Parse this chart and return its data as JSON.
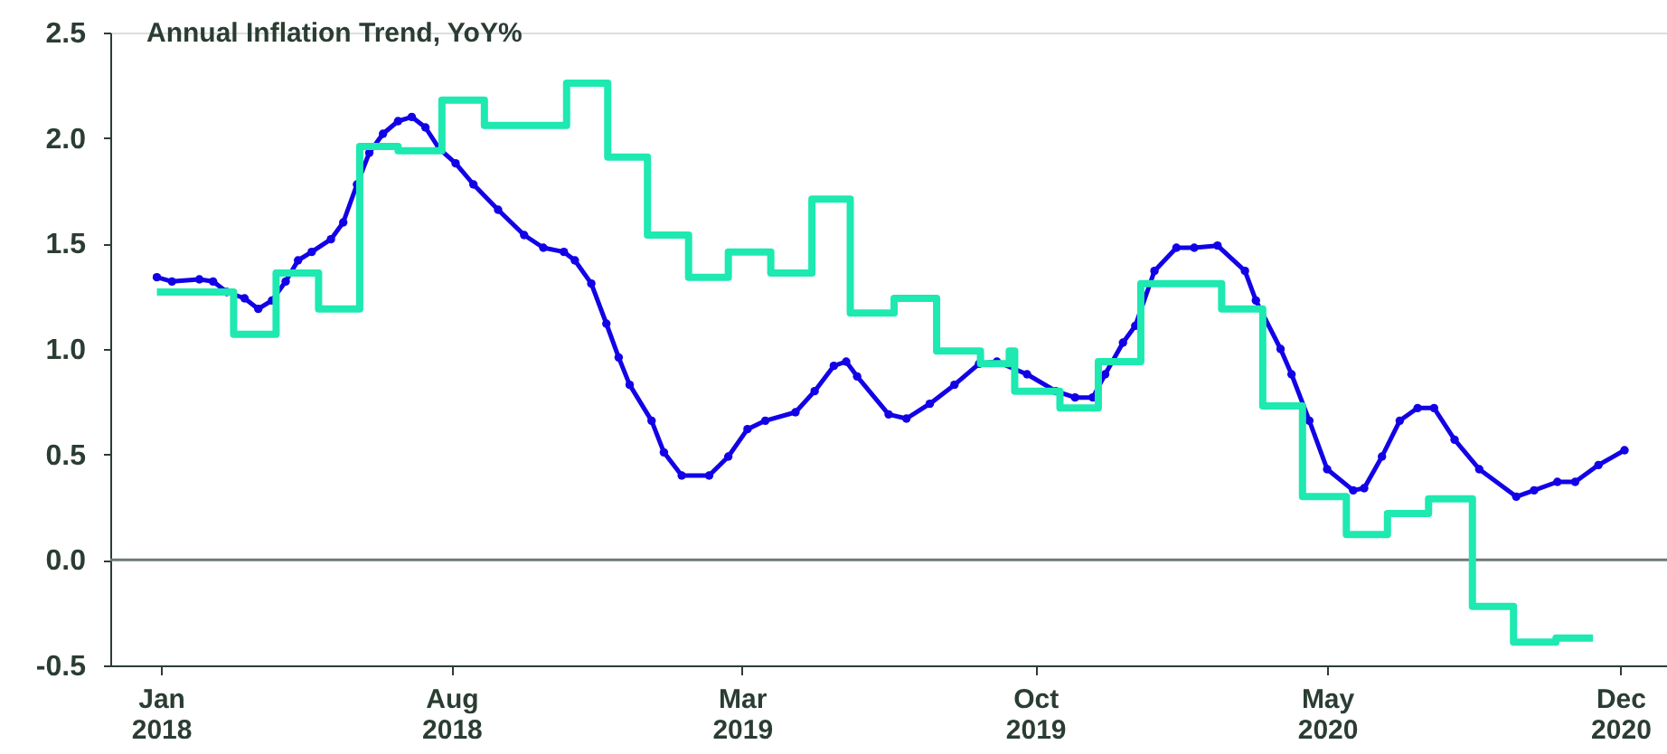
{
  "chart_data": {
    "type": "line",
    "title": "Annual Inflation Trend, YoY%",
    "xlim": [
      "2017-11-25",
      "2021-01-04"
    ],
    "xticks": [
      {
        "value": "2018-01-01",
        "label": "Jan 2018"
      },
      {
        "value": "2018-08-01",
        "label": "Aug 2018"
      },
      {
        "value": "2019-03-01",
        "label": "Mar 2019"
      },
      {
        "value": "2019-10-01",
        "label": "Oct 2019"
      },
      {
        "value": "2020-05-01",
        "label": "May 2020"
      },
      {
        "value": "2020-12-01",
        "label": "Dec 2020"
      }
    ],
    "ylim": [
      -0.5,
      2.5
    ],
    "yticks": [
      -0.5,
      {
        "value": 0,
        "label": "0.0"
      },
      0.5,
      {
        "value": 1,
        "label": "1.0"
      },
      1.5,
      {
        "value": 2,
        "label": "2.0"
      },
      2.5
    ],
    "grid": false,
    "ref_lines": [
      {
        "axis": "y",
        "value": 0,
        "color": "#6b7b72"
      }
    ],
    "series": [
      {
        "color": "#1200e6",
        "marker": "circle",
        "x": [
          "2017-12-29",
          "2018-01-09",
          "2018-01-29",
          "2018-02-08",
          "2018-02-18",
          "2018-03-03",
          "2018-03-13",
          "2018-03-23",
          "2018-04-02",
          "2018-04-11",
          "2018-04-21",
          "2018-05-05",
          "2018-05-14",
          "2018-05-24",
          "2018-06-02",
          "2018-06-12",
          "2018-06-23",
          "2018-07-03",
          "2018-07-13",
          "2018-07-23",
          "2018-08-04",
          "2018-08-17",
          "2018-09-04",
          "2018-09-23",
          "2018-10-07",
          "2018-10-22",
          "2018-10-30",
          "2018-11-11",
          "2018-11-22",
          "2018-12-01",
          "2018-12-09",
          "2018-12-25",
          "2019-01-03",
          "2019-01-16",
          "2019-02-05",
          "2019-02-19",
          "2019-03-05",
          "2019-03-18",
          "2019-04-09",
          "2019-04-23",
          "2019-05-07",
          "2019-05-16",
          "2019-05-24",
          "2019-06-16",
          "2019-06-29",
          "2019-07-16",
          "2019-08-03",
          "2019-08-21",
          "2019-09-03",
          "2019-09-25",
          "2019-10-16",
          "2019-10-30",
          "2019-11-12",
          "2019-11-21",
          "2019-12-04",
          "2019-12-13",
          "2019-12-27",
          "2020-01-12",
          "2020-01-25",
          "2020-02-11",
          "2020-03-02",
          "2020-03-10",
          "2020-03-28",
          "2020-04-05",
          "2020-04-18",
          "2020-05-01",
          "2020-05-20",
          "2020-05-28",
          "2020-06-10",
          "2020-06-23",
          "2020-07-06",
          "2020-07-18",
          "2020-08-02",
          "2020-08-20",
          "2020-09-16",
          "2020-09-29",
          "2020-10-16",
          "2020-10-29",
          "2020-11-15",
          "2020-12-04"
        ],
        "values": [
          1.34,
          1.32,
          1.33,
          1.32,
          1.27,
          1.24,
          1.19,
          1.23,
          1.32,
          1.42,
          1.46,
          1.52,
          1.6,
          1.78,
          1.93,
          2.02,
          2.08,
          2.1,
          2.05,
          1.95,
          1.88,
          1.78,
          1.66,
          1.54,
          1.48,
          1.46,
          1.42,
          1.31,
          1.12,
          0.96,
          0.83,
          0.66,
          0.51,
          0.4,
          0.4,
          0.49,
          0.62,
          0.66,
          0.7,
          0.8,
          0.92,
          0.94,
          0.87,
          0.69,
          0.67,
          0.74,
          0.83,
          0.93,
          0.94,
          0.88,
          0.8,
          0.77,
          0.77,
          0.88,
          1.03,
          1.11,
          1.37,
          1.48,
          1.48,
          1.49,
          1.37,
          1.23,
          1.0,
          0.88,
          0.66,
          0.43,
          0.33,
          0.34,
          0.49,
          0.66,
          0.72,
          0.72,
          0.57,
          0.43,
          0.3,
          0.33,
          0.37,
          0.37,
          0.45,
          0.52
        ]
      },
      {
        "type": "step",
        "color": "#1de9b0",
        "x": [
          "2017-12-29",
          "2018-02-23",
          "2018-03-26",
          "2018-04-26",
          "2018-05-26",
          "2018-06-23",
          "2018-07-25",
          "2018-08-25",
          "2018-10-24",
          "2018-11-23",
          "2018-12-22",
          "2019-01-21",
          "2019-02-19",
          "2019-03-22",
          "2019-04-21",
          "2019-05-19",
          "2019-06-20",
          "2019-07-21",
          "2019-08-22",
          "2019-09-12",
          "2019-09-16",
          "2019-10-19",
          "2019-11-16",
          "2019-12-17",
          "2020-02-14",
          "2020-03-15",
          "2020-04-13",
          "2020-05-15",
          "2020-06-14",
          "2020-07-14",
          "2020-08-15",
          "2020-09-14",
          "2020-10-15",
          "2020-11-11"
        ],
        "values": [
          1.27,
          1.07,
          1.36,
          1.19,
          1.96,
          1.94,
          2.18,
          2.06,
          2.26,
          1.91,
          1.54,
          1.34,
          1.46,
          1.36,
          1.71,
          1.17,
          1.24,
          0.99,
          0.93,
          0.99,
          0.8,
          0.72,
          0.94,
          1.31,
          1.19,
          0.73,
          0.3,
          0.12,
          0.22,
          0.29,
          -0.22,
          -0.39,
          -0.37,
          -0.37
        ]
      }
    ]
  }
}
